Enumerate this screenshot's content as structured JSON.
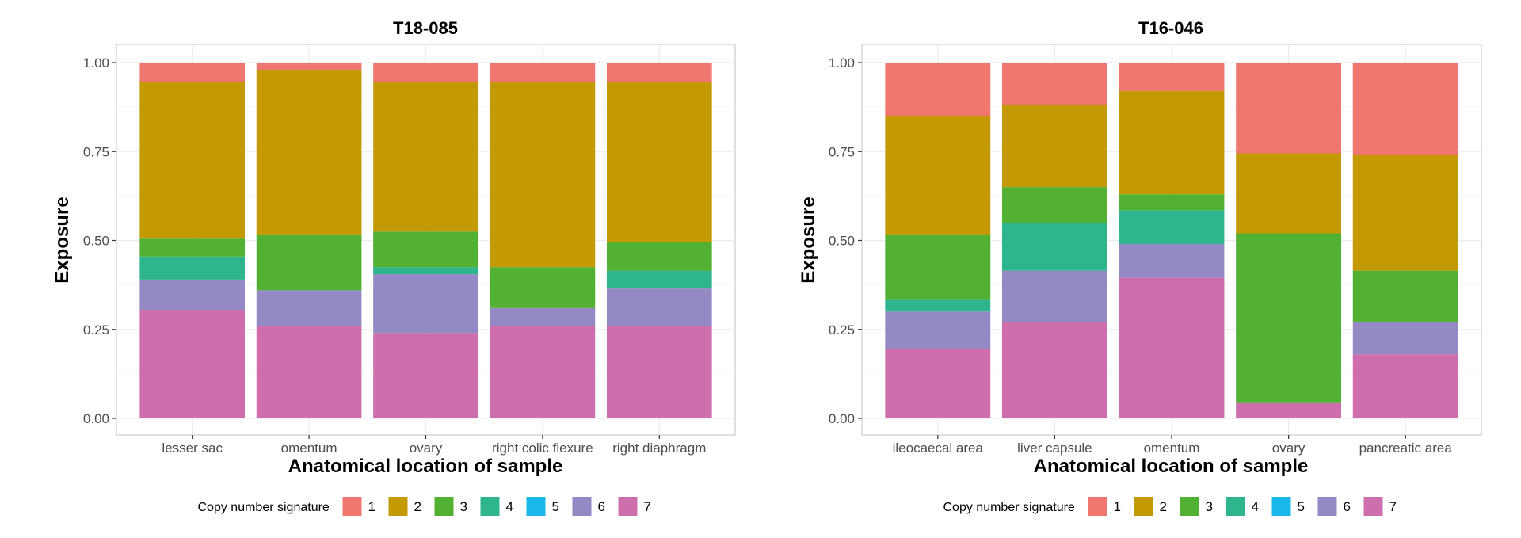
{
  "legend": {
    "title": "Copy number signature",
    "items": [
      {
        "label": "1",
        "color": "#F07770"
      },
      {
        "label": "2",
        "color": "#C49A04"
      },
      {
        "label": "3",
        "color": "#52B132"
      },
      {
        "label": "4",
        "color": "#2FB58E"
      },
      {
        "label": "5",
        "color": "#1AB8E8"
      },
      {
        "label": "6",
        "color": "#9489C4"
      },
      {
        "label": "7",
        "color": "#CE6EAD"
      }
    ]
  },
  "chart_data": [
    {
      "type": "bar",
      "stacked": true,
      "title": "T18-085",
      "xlabel": "Anatomical location of sample",
      "ylabel": "Exposure",
      "ylim": [
        0,
        1
      ],
      "yticks": [
        "0.00",
        "0.25",
        "0.50",
        "0.75",
        "1.00"
      ],
      "grid": true,
      "categories": [
        "lesser sac",
        "omentum",
        "ovary",
        "right colic flexure",
        "right diaphragm"
      ],
      "series": [
        {
          "name": "7",
          "values": [
            0.305,
            0.26,
            0.24,
            0.26,
            0.26
          ]
        },
        {
          "name": "6",
          "values": [
            0.085,
            0.1,
            0.165,
            0.05,
            0.105
          ]
        },
        {
          "name": "5",
          "values": [
            0,
            0,
            0,
            0,
            0
          ]
        },
        {
          "name": "4",
          "values": [
            0.065,
            0,
            0.02,
            0,
            0.05
          ]
        },
        {
          "name": "3",
          "values": [
            0.05,
            0.155,
            0.1,
            0.115,
            0.08
          ]
        },
        {
          "name": "2",
          "values": [
            0.44,
            0.465,
            0.42,
            0.52,
            0.45
          ]
        },
        {
          "name": "1",
          "values": [
            0.055,
            0.02,
            0.055,
            0.055,
            0.055
          ]
        }
      ]
    },
    {
      "type": "bar",
      "stacked": true,
      "title": "T16-046",
      "xlabel": "Anatomical location of sample",
      "ylabel": "Exposure",
      "ylim": [
        0,
        1
      ],
      "yticks": [
        "0.00",
        "0.25",
        "0.50",
        "0.75",
        "1.00"
      ],
      "grid": true,
      "categories": [
        "ileocaecal area",
        "liver capsule",
        "omentum",
        "ovary",
        "pancreatic area"
      ],
      "series": [
        {
          "name": "7",
          "values": [
            0.195,
            0.27,
            0.395,
            0.045,
            0.18
          ]
        },
        {
          "name": "6",
          "values": [
            0.105,
            0.145,
            0.095,
            0,
            0.09
          ]
        },
        {
          "name": "5",
          "values": [
            0,
            0,
            0,
            0,
            0
          ]
        },
        {
          "name": "4",
          "values": [
            0.035,
            0.135,
            0.095,
            0,
            0
          ]
        },
        {
          "name": "3",
          "values": [
            0.18,
            0.1,
            0.045,
            0.475,
            0.145
          ]
        },
        {
          "name": "2",
          "values": [
            0.335,
            0.23,
            0.29,
            0.225,
            0.325
          ]
        },
        {
          "name": "1",
          "values": [
            0.15,
            0.12,
            0.08,
            0.255,
            0.26
          ]
        }
      ]
    }
  ]
}
